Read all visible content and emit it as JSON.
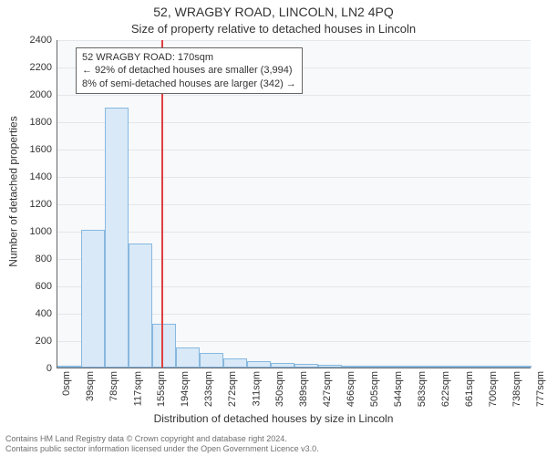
{
  "chart": {
    "type": "histogram",
    "title_main": "52, WRAGBY ROAD, LINCOLN, LN2 4PQ",
    "title_sub": "Size of property relative to detached houses in Lincoln",
    "ylabel": "Number of detached properties",
    "xlabel": "Distribution of detached houses by size in Lincoln",
    "ylim_max": 2400,
    "ytick_step": 200,
    "x_tick_labels": [
      "0sqm",
      "39sqm",
      "78sqm",
      "117sqm",
      "155sqm",
      "194sqm",
      "233sqm",
      "272sqm",
      "311sqm",
      "350sqm",
      "389sqm",
      "427sqm",
      "466sqm",
      "505sqm",
      "544sqm",
      "583sqm",
      "622sqm",
      "661sqm",
      "700sqm",
      "738sqm",
      "777sqm"
    ],
    "bar_values": [
      0,
      1010,
      1900,
      910,
      320,
      150,
      110,
      70,
      45,
      35,
      25,
      18,
      12,
      8,
      5,
      3,
      2,
      1,
      1,
      0
    ],
    "bar_fill": "#d9e9f7",
    "bar_stroke": "#87b8e0",
    "background_color": "#f7f9fa",
    "grid_color": "#e3e7eb",
    "axis_color": "#666666",
    "marker": {
      "value_sqm": 170,
      "x_min": 0,
      "x_max": 777,
      "color": "#e04040",
      "box_line1": "52 WRAGBY ROAD: 170sqm",
      "box_line2": "← 92% of detached houses are smaller (3,994)",
      "box_line3": "8% of semi-detached houses are larger (342) →"
    },
    "footer_line1": "Contains HM Land Registry data © Crown copyright and database right 2024.",
    "footer_line2": "Contains public sector information licensed under the Open Government Licence v3.0.",
    "title_fontsize": 14,
    "subtitle_fontsize": 13,
    "axis_label_fontsize": 12,
    "tick_fontsize": 11,
    "annot_fontsize": 11,
    "footer_fontsize": 9,
    "footer_color": "#707070"
  }
}
